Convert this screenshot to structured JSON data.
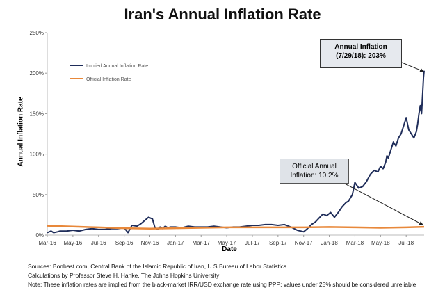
{
  "chart_data": {
    "type": "line",
    "title": "Iran's Annual Inflation Rate",
    "xlabel": "Date",
    "ylabel": "Annual Inflation Rate",
    "ylim": [
      0,
      250
    ],
    "yticks": [
      "0%",
      "50%",
      "100%",
      "150%",
      "200%",
      "250%"
    ],
    "xticks": [
      "Mar-16",
      "May-16",
      "Jul-16",
      "Sep-16",
      "Nov-16",
      "Jan-17",
      "Mar-17",
      "May-17",
      "Jul-17",
      "Sep-17",
      "Nov-17",
      "Jan-18",
      "Mar-18",
      "May-18",
      "Jul-18"
    ],
    "legend_position": "top-left",
    "series": [
      {
        "name": "Implied Annual Inflation Rate",
        "color": "#1f2d5a",
        "x": [
          0,
          0.3,
          0.5,
          0.8,
          1.0,
          1.5,
          2.0,
          2.5,
          3.0,
          3.5,
          4.0,
          4.5,
          5.0,
          5.5,
          6.0,
          6.3,
          6.6,
          7.0,
          7.3,
          7.6,
          7.9,
          8.2,
          8.4,
          8.6,
          8.8,
          9.0,
          9.2,
          9.4,
          9.6,
          10.0,
          10.5,
          11.0,
          11.5,
          12.0,
          12.5,
          13.0,
          13.5,
          14.0,
          14.5,
          15.0,
          15.5,
          16.0,
          16.5,
          17.0,
          17.5,
          18.0,
          18.5,
          19.0,
          19.5,
          20.0,
          20.3,
          20.6,
          20.9,
          21.2,
          21.5,
          21.8,
          22.1,
          22.4,
          22.7,
          23.0,
          23.3,
          23.5,
          23.8,
          24.0,
          24.3,
          24.6,
          24.9,
          25.2,
          25.5,
          25.8,
          26.0,
          26.2,
          26.4,
          26.5,
          26.6,
          26.8,
          27.0,
          27.2,
          27.4,
          27.6,
          27.8,
          28.0,
          28.2,
          28.4,
          28.6,
          28.8,
          28.9,
          29.0,
          29.1,
          29.2,
          29.3,
          29.35,
          29.4
        ],
        "values": [
          3,
          5,
          3,
          4,
          5,
          5,
          6,
          5,
          7,
          8,
          7,
          7,
          8,
          8,
          9,
          3,
          12,
          11,
          14,
          18,
          22,
          20,
          9,
          7,
          10,
          8,
          11,
          9,
          10,
          10,
          9,
          11,
          10,
          10,
          10,
          11,
          10,
          9,
          10,
          10,
          11,
          12,
          12,
          13,
          13,
          12,
          13,
          10,
          6,
          4,
          8,
          13,
          16,
          21,
          26,
          24,
          28,
          22,
          28,
          35,
          40,
          42,
          50,
          65,
          58,
          60,
          66,
          75,
          80,
          78,
          85,
          82,
          90,
          98,
          95,
          105,
          115,
          110,
          120,
          125,
          135,
          145,
          130,
          125,
          120,
          128,
          138,
          150,
          160,
          150,
          180,
          195,
          203
        ]
      },
      {
        "name": "Official Inflation Rate",
        "color": "#e8883a",
        "x": [
          0,
          2,
          4,
          6,
          8,
          10,
          12,
          14,
          16,
          18,
          20,
          22,
          24,
          26,
          28,
          29.4
        ],
        "values": [
          11.5,
          10.5,
          9.5,
          8.5,
          8,
          8.5,
          9,
          9.5,
          9.5,
          9.5,
          9.5,
          10,
          9.5,
          9,
          9.5,
          10.2
        ]
      }
    ],
    "annotations": [
      {
        "line1": "Annual Inflation",
        "line2": "(7/29/18): 203%"
      },
      {
        "line1": "Official Annual",
        "line2": "Inflation: 10.2%"
      }
    ]
  },
  "sources": [
    "Sources: Bonbast.com, Central Bank of the Islamic Republic of Iran, U.S Bureau of Labor Statistics",
    "Calculations by Professor Steve H. Hanke, The Johns Hopkins University",
    "Note: These inflation rates are implied from the black-market IRR/USD exchange rate using PPP; values under 25% should be considered unreliable"
  ]
}
